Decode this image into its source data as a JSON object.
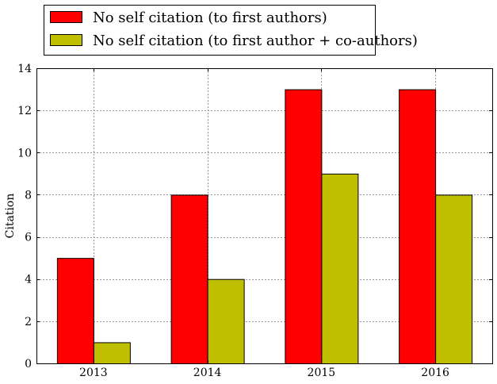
{
  "chart_data": {
    "type": "bar",
    "categories": [
      "2013",
      "2014",
      "2015",
      "2016"
    ],
    "series": [
      {
        "name": "No self citation (to first authors)",
        "values": [
          5,
          8,
          13,
          13
        ],
        "color": "#ff0000"
      },
      {
        "name": "No self citation (to first author + co-authors)",
        "values": [
          1,
          4,
          9,
          8
        ],
        "color": "#bfbf00"
      }
    ],
    "title": "",
    "xlabel": "",
    "ylabel": "Citation",
    "ylim": [
      0,
      14
    ],
    "yticks": [
      "0",
      "2",
      "4",
      "6",
      "8",
      "10",
      "12",
      "14"
    ],
    "grid": true,
    "legend_position": "top-left, above plot"
  }
}
